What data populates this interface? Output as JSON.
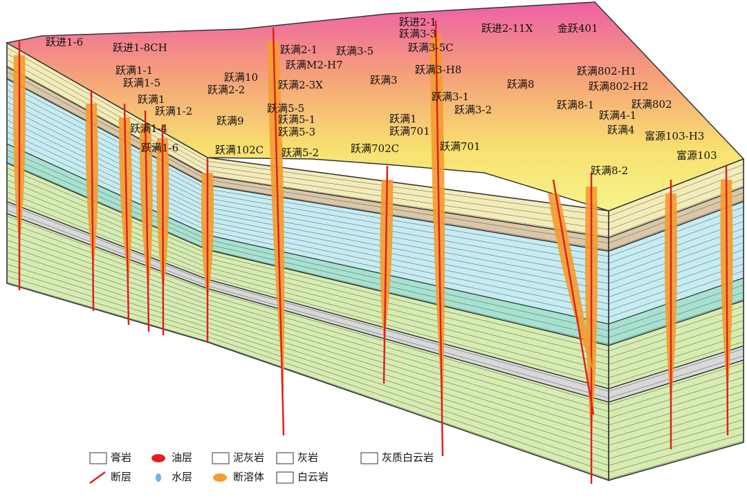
{
  "wells": [
    {
      "label": "跃进1-6"
    },
    {
      "label": "跃进1-8CH"
    },
    {
      "label": "跃满1-1"
    },
    {
      "label": "跃满1-5"
    },
    {
      "label": "跃满1"
    },
    {
      "label": "跃满1-2"
    },
    {
      "label": "跃满1-4"
    },
    {
      "label": "跃满1-6"
    },
    {
      "label": "跃满9"
    },
    {
      "label": "跃满102C"
    },
    {
      "label": "跃满10"
    },
    {
      "label": "跃满2-2"
    },
    {
      "label": "跃满2-1"
    },
    {
      "label": "跃满M2-H7"
    },
    {
      "label": "跃满2-3X"
    },
    {
      "label": "跃满5-5"
    },
    {
      "label": "跃满5-1"
    },
    {
      "label": "跃满5-3"
    },
    {
      "label": "跃满5-2"
    },
    {
      "label": "跃满3-5"
    },
    {
      "label": "跃进2-1"
    },
    {
      "label": "跃满3-3"
    },
    {
      "label": "跃满3-5C"
    },
    {
      "label": "跃满3-H8"
    },
    {
      "label": "跃满3"
    },
    {
      "label": "跃满3-1"
    },
    {
      "label": "跃满3-2"
    },
    {
      "label": "跃满1"
    },
    {
      "label": "跃满701"
    },
    {
      "label": "跃满702C"
    },
    {
      "label": "跃满701"
    },
    {
      "label": "跃进2-11X"
    },
    {
      "label": "金跃401"
    },
    {
      "label": "跃满8"
    },
    {
      "label": "跃满802-H1"
    },
    {
      "label": "跃满802-H2"
    },
    {
      "label": "跃满802"
    },
    {
      "label": "跃满8-1"
    },
    {
      "label": "跃满4-1"
    },
    {
      "label": "跃满4"
    },
    {
      "label": "富源103-H3"
    },
    {
      "label": "富源103"
    },
    {
      "label": "跃满8-2"
    }
  ],
  "legend": [
    {
      "label": "膏岩"
    },
    {
      "label": "油层"
    },
    {
      "label": "泥灰岩"
    },
    {
      "label": "灰岩"
    },
    {
      "label": "灰质白云岩"
    },
    {
      "label": "断层"
    },
    {
      "label": "水层"
    },
    {
      "label": "断溶体"
    },
    {
      "label": "白云岩"
    }
  ]
}
